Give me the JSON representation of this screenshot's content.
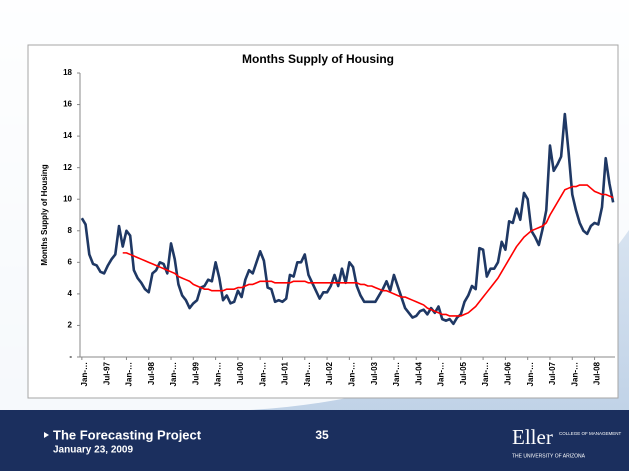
{
  "chart_data": {
    "type": "line",
    "title": "Months Supply of Housing",
    "y_label": "Months Supply of Housing",
    "categories": [
      "Jan-…",
      null,
      null,
      null,
      null,
      null,
      "Jul-97",
      null,
      null,
      null,
      null,
      null,
      "Jan-…",
      null,
      null,
      null,
      null,
      null,
      "Jul-98",
      null,
      null,
      null,
      null,
      null,
      "Jan-…",
      null,
      null,
      null,
      null,
      null,
      "Jul-99",
      null,
      null,
      null,
      null,
      null,
      "Jan-…",
      null,
      null,
      null,
      null,
      null,
      "Jul-00",
      null,
      null,
      null,
      null,
      null,
      "Jan-…",
      null,
      null,
      null,
      null,
      null,
      "Jul-01",
      null,
      null,
      null,
      null,
      null,
      "Jan-…",
      null,
      null,
      null,
      null,
      null,
      "Jul-02",
      null,
      null,
      null,
      null,
      null,
      "Jan-…",
      null,
      null,
      null,
      null,
      null,
      "Jul-03",
      null,
      null,
      null,
      null,
      null,
      "Jan-…",
      null,
      null,
      null,
      null,
      null,
      "Jul-04",
      null,
      null,
      null,
      null,
      null,
      "Jan-…",
      null,
      null,
      null,
      null,
      null,
      "Jul-05",
      null,
      null,
      null,
      null,
      null,
      "Jan-…",
      null,
      null,
      null,
      null,
      null,
      "Jul-06",
      null,
      null,
      null,
      null,
      null,
      "Jan-…",
      null,
      null,
      null,
      null,
      null,
      "Jul-07",
      null,
      null,
      null,
      null,
      null,
      "Jan-…",
      null,
      null,
      null,
      null,
      null,
      "Jul-08",
      null,
      null,
      null,
      null,
      null
    ],
    "series": [
      {
        "color": "#1f3864",
        "values": [
          8.8,
          8.4,
          6.5,
          5.9,
          5.8,
          5.4,
          5.3,
          5.8,
          6.2,
          6.5,
          8.3,
          7.0,
          8.0,
          7.7,
          5.5,
          5.0,
          4.7,
          4.3,
          4.1,
          5.3,
          5.5,
          6.0,
          5.9,
          5.3,
          7.2,
          6.2,
          4.6,
          3.9,
          3.6,
          3.1,
          3.4,
          3.6,
          4.4,
          4.5,
          4.9,
          4.8,
          6.0,
          5.0,
          3.6,
          3.9,
          3.4,
          3.5,
          4.2,
          3.8,
          4.9,
          5.5,
          5.3,
          6.0,
          6.7,
          6.1,
          4.4,
          4.3,
          3.5,
          3.6,
          3.5,
          3.7,
          5.2,
          5.1,
          6.0,
          6.0,
          6.5,
          5.2,
          4.7,
          4.2,
          3.7,
          4.1,
          4.1,
          4.5,
          5.2,
          4.5,
          5.6,
          4.7,
          6.0,
          5.7,
          4.5,
          3.9,
          3.5,
          3.5,
          3.5,
          3.5,
          3.9,
          4.3,
          4.8,
          4.2,
          5.2,
          4.5,
          3.8,
          3.1,
          2.8,
          2.5,
          2.6,
          2.9,
          3.0,
          2.7,
          3.1,
          2.8,
          3.2,
          2.4,
          2.3,
          2.4,
          2.1,
          2.5,
          2.7,
          3.5,
          3.9,
          4.5,
          4.3,
          6.9,
          6.8,
          5.1,
          5.6,
          5.6,
          6.0,
          7.3,
          6.8,
          8.6,
          8.5,
          9.4,
          8.7,
          10.4,
          10.0,
          8.0,
          7.6,
          7.1,
          8.1,
          9.3,
          13.4,
          11.8,
          12.2,
          12.7,
          15.4,
          13.0,
          10.3,
          9.3,
          8.5,
          8.0,
          7.8,
          8.3,
          8.5,
          8.4,
          9.5,
          12.6,
          11.0,
          9.8
        ]
      },
      {
        "color": "#ff0000",
        "values": [
          null,
          null,
          null,
          null,
          null,
          null,
          null,
          null,
          null,
          null,
          null,
          6.6,
          6.6,
          6.5,
          6.4,
          6.3,
          6.2,
          6.1,
          6.0,
          5.9,
          5.8,
          5.7,
          5.6,
          5.5,
          5.4,
          5.3,
          5.1,
          5.0,
          4.9,
          4.8,
          4.6,
          4.5,
          4.4,
          4.3,
          4.3,
          4.2,
          4.2,
          4.2,
          4.2,
          4.3,
          4.3,
          4.3,
          4.4,
          4.4,
          4.5,
          4.6,
          4.6,
          4.7,
          4.8,
          4.8,
          4.8,
          4.8,
          4.7,
          4.7,
          4.7,
          4.7,
          4.7,
          4.8,
          4.8,
          4.8,
          4.8,
          4.7,
          4.7,
          4.7,
          4.7,
          4.7,
          4.7,
          4.7,
          4.7,
          4.7,
          4.7,
          4.7,
          4.7,
          4.7,
          4.7,
          4.6,
          4.6,
          4.5,
          4.5,
          4.4,
          4.3,
          4.2,
          4.2,
          4.1,
          4.0,
          3.9,
          3.8,
          3.8,
          3.7,
          3.6,
          3.5,
          3.4,
          3.3,
          3.1,
          3.0,
          2.9,
          2.8,
          2.7,
          2.7,
          2.6,
          2.6,
          2.6,
          2.6,
          2.7,
          2.8,
          3.0,
          3.2,
          3.5,
          3.8,
          4.1,
          4.4,
          4.7,
          5.0,
          5.4,
          5.8,
          6.2,
          6.6,
          7.0,
          7.3,
          7.6,
          7.8,
          8.0,
          8.1,
          8.2,
          8.3,
          8.5,
          9.0,
          9.4,
          9.8,
          10.2,
          10.6,
          10.7,
          10.8,
          10.8,
          10.9,
          10.9,
          10.9,
          10.7,
          10.5,
          10.4,
          10.3,
          10.3,
          10.2,
          10.1
        ]
      }
    ],
    "ylim": [
      0,
      18
    ],
    "yticks": [
      {
        "value": 0,
        "label": "-"
      },
      2,
      4,
      6,
      8,
      10,
      12,
      14,
      16,
      18
    ],
    "grid": false
  },
  "footer": {
    "project": "The Forecasting Project",
    "date": "January 23, 2009",
    "page": "35",
    "logo": "Eller",
    "logo_line1": "COLLEGE OF MANAGEMENT",
    "logo_line2": "THE UNIVERSITY OF ARIZONA"
  }
}
